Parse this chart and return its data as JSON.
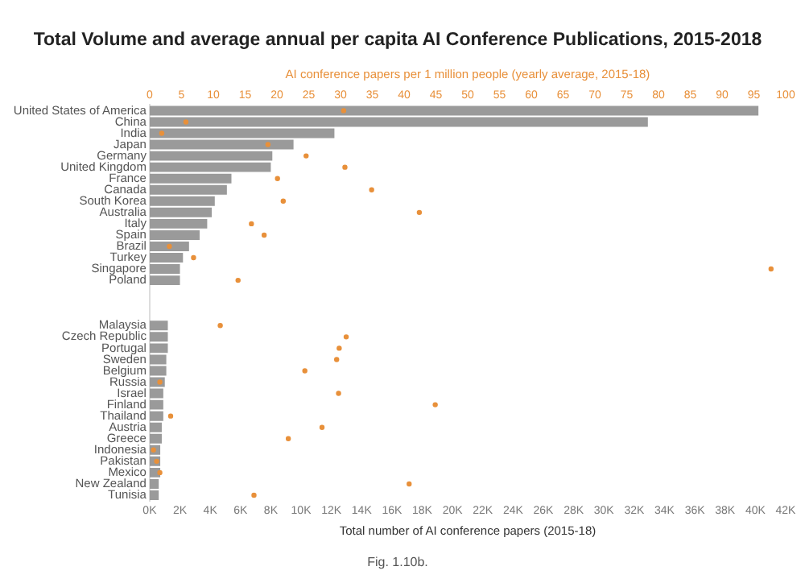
{
  "chart_data": {
    "type": "bar",
    "orientation": "horizontal",
    "title": "Total Volume and average annual per capita AI Conference Publications, 2015-2018",
    "xlabel": "Total number of AI conference papers (2015-18)",
    "x2label": "AI conference papers per 1 million people (yearly average, 2015-18)",
    "annotations": [
      "Fig. 1.10b."
    ],
    "categories": [
      "United States of America",
      "China",
      "India",
      "Japan",
      "Germany",
      "United Kingdom",
      "France",
      "Canada",
      "South Korea",
      "Australia",
      "Italy",
      "Spain",
      "Brazil",
      "Turkey",
      "Singapore",
      "Poland",
      null,
      null,
      null,
      "Malaysia",
      "Czech Republic",
      "Portugal",
      "Sweden",
      "Belgium",
      "Russia",
      "Israel",
      "Finland",
      "Thailand",
      "Austria",
      "Greece",
      "Indonesia",
      "Pakistan",
      "Mexico",
      "New Zealand",
      "Tunisia"
    ],
    "series": [
      {
        "color": "#9a9a9a",
        "values": [
          40200,
          32900,
          12200,
          9500,
          8100,
          8000,
          5400,
          5100,
          4300,
          4100,
          3800,
          3300,
          2600,
          2200,
          2000,
          2000,
          null,
          null,
          null,
          1200,
          1200,
          1200,
          1100,
          1100,
          1000,
          900,
          900,
          900,
          800,
          800,
          700,
          700,
          700,
          600,
          600
        ]
      },
      {
        "type": "scatter",
        "axis": "x2",
        "color": "#e8903a",
        "values": [
          30.5,
          5.7,
          1.9,
          18.6,
          24.6,
          30.7,
          20.1,
          34.9,
          21.0,
          42.4,
          16.0,
          18.0,
          3.1,
          6.9,
          97.7,
          13.9,
          null,
          null,
          null,
          11.1,
          30.9,
          29.8,
          29.4,
          24.4,
          1.6,
          29.7,
          44.9,
          3.3,
          27.1,
          21.8,
          0.6,
          1.1,
          1.6,
          40.8,
          16.4
        ]
      }
    ],
    "xlim": [
      0,
      42000
    ],
    "xticks": [
      {
        "value": 0,
        "label": "0K"
      },
      {
        "value": 2000,
        "label": "2K"
      },
      {
        "value": 4000,
        "label": "4K"
      },
      {
        "value": 6000,
        "label": "6K"
      },
      {
        "value": 8000,
        "label": "8K"
      },
      {
        "value": 10000,
        "label": "10K"
      },
      {
        "value": 12000,
        "label": "12K"
      },
      {
        "value": 14000,
        "label": "14K"
      },
      {
        "value": 16000,
        "label": "16K"
      },
      {
        "value": 18000,
        "label": "18K"
      },
      {
        "value": 20000,
        "label": "20K"
      },
      {
        "value": 22000,
        "label": "22K"
      },
      {
        "value": 24000,
        "label": "24K"
      },
      {
        "value": 26000,
        "label": "26K"
      },
      {
        "value": 28000,
        "label": "28K"
      },
      {
        "value": 30000,
        "label": "30K"
      },
      {
        "value": 32000,
        "label": "32K"
      },
      {
        "value": 34000,
        "label": "34K"
      },
      {
        "value": 36000,
        "label": "36K"
      },
      {
        "value": 38000,
        "label": "38K"
      },
      {
        "value": 40000,
        "label": "40K"
      },
      {
        "value": 42000,
        "label": "42K"
      }
    ],
    "x2lim": [
      0,
      100
    ],
    "x2ticks": [
      0,
      5,
      10,
      15,
      20,
      25,
      30,
      35,
      40,
      45,
      50,
      55,
      60,
      65,
      70,
      75,
      80,
      85,
      90,
      95,
      100
    ]
  }
}
